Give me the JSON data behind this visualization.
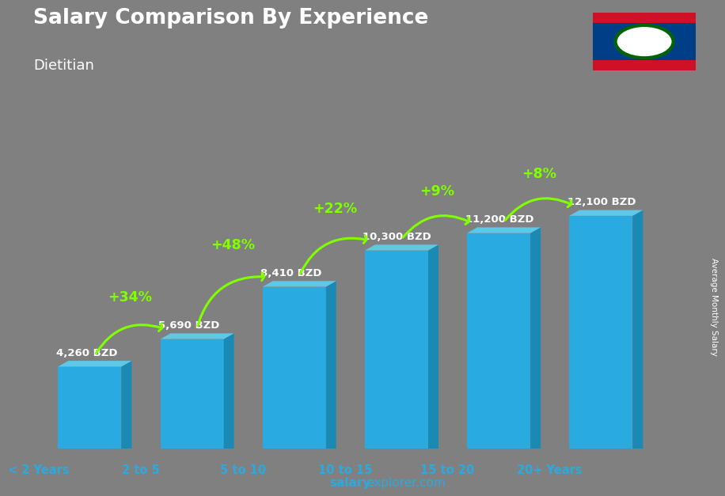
{
  "title": "Salary Comparison By Experience",
  "subtitle": "Dietitian",
  "categories": [
    "< 2 Years",
    "2 to 5",
    "5 to 10",
    "10 to 15",
    "15 to 20",
    "20+ Years"
  ],
  "values": [
    4260,
    5690,
    8410,
    10300,
    11200,
    12100
  ],
  "value_labels": [
    "4,260 BZD",
    "5,690 BZD",
    "8,410 BZD",
    "10,300 BZD",
    "11,200 BZD",
    "12,100 BZD"
  ],
  "pct_labels": [
    "+34%",
    "+48%",
    "+22%",
    "+9%",
    "+8%"
  ],
  "bar_color_main": "#29ABE2",
  "bar_color_right": "#1A8AB5",
  "bar_color_top": "#5EC8E8",
  "bg_color": "#808080",
  "title_color": "#ffffff",
  "subtitle_color": "#ffffff",
  "label_color": "#ffffff",
  "pct_color": "#7FFF00",
  "xlabel_color": "#29ABE2",
  "footer_salary": "salary",
  "footer_rest": "explorer.com",
  "ylabel_text": "Average Monthly Salary",
  "ymax": 14500,
  "flag_blue": "#003F87",
  "flag_red": "#CE1126"
}
